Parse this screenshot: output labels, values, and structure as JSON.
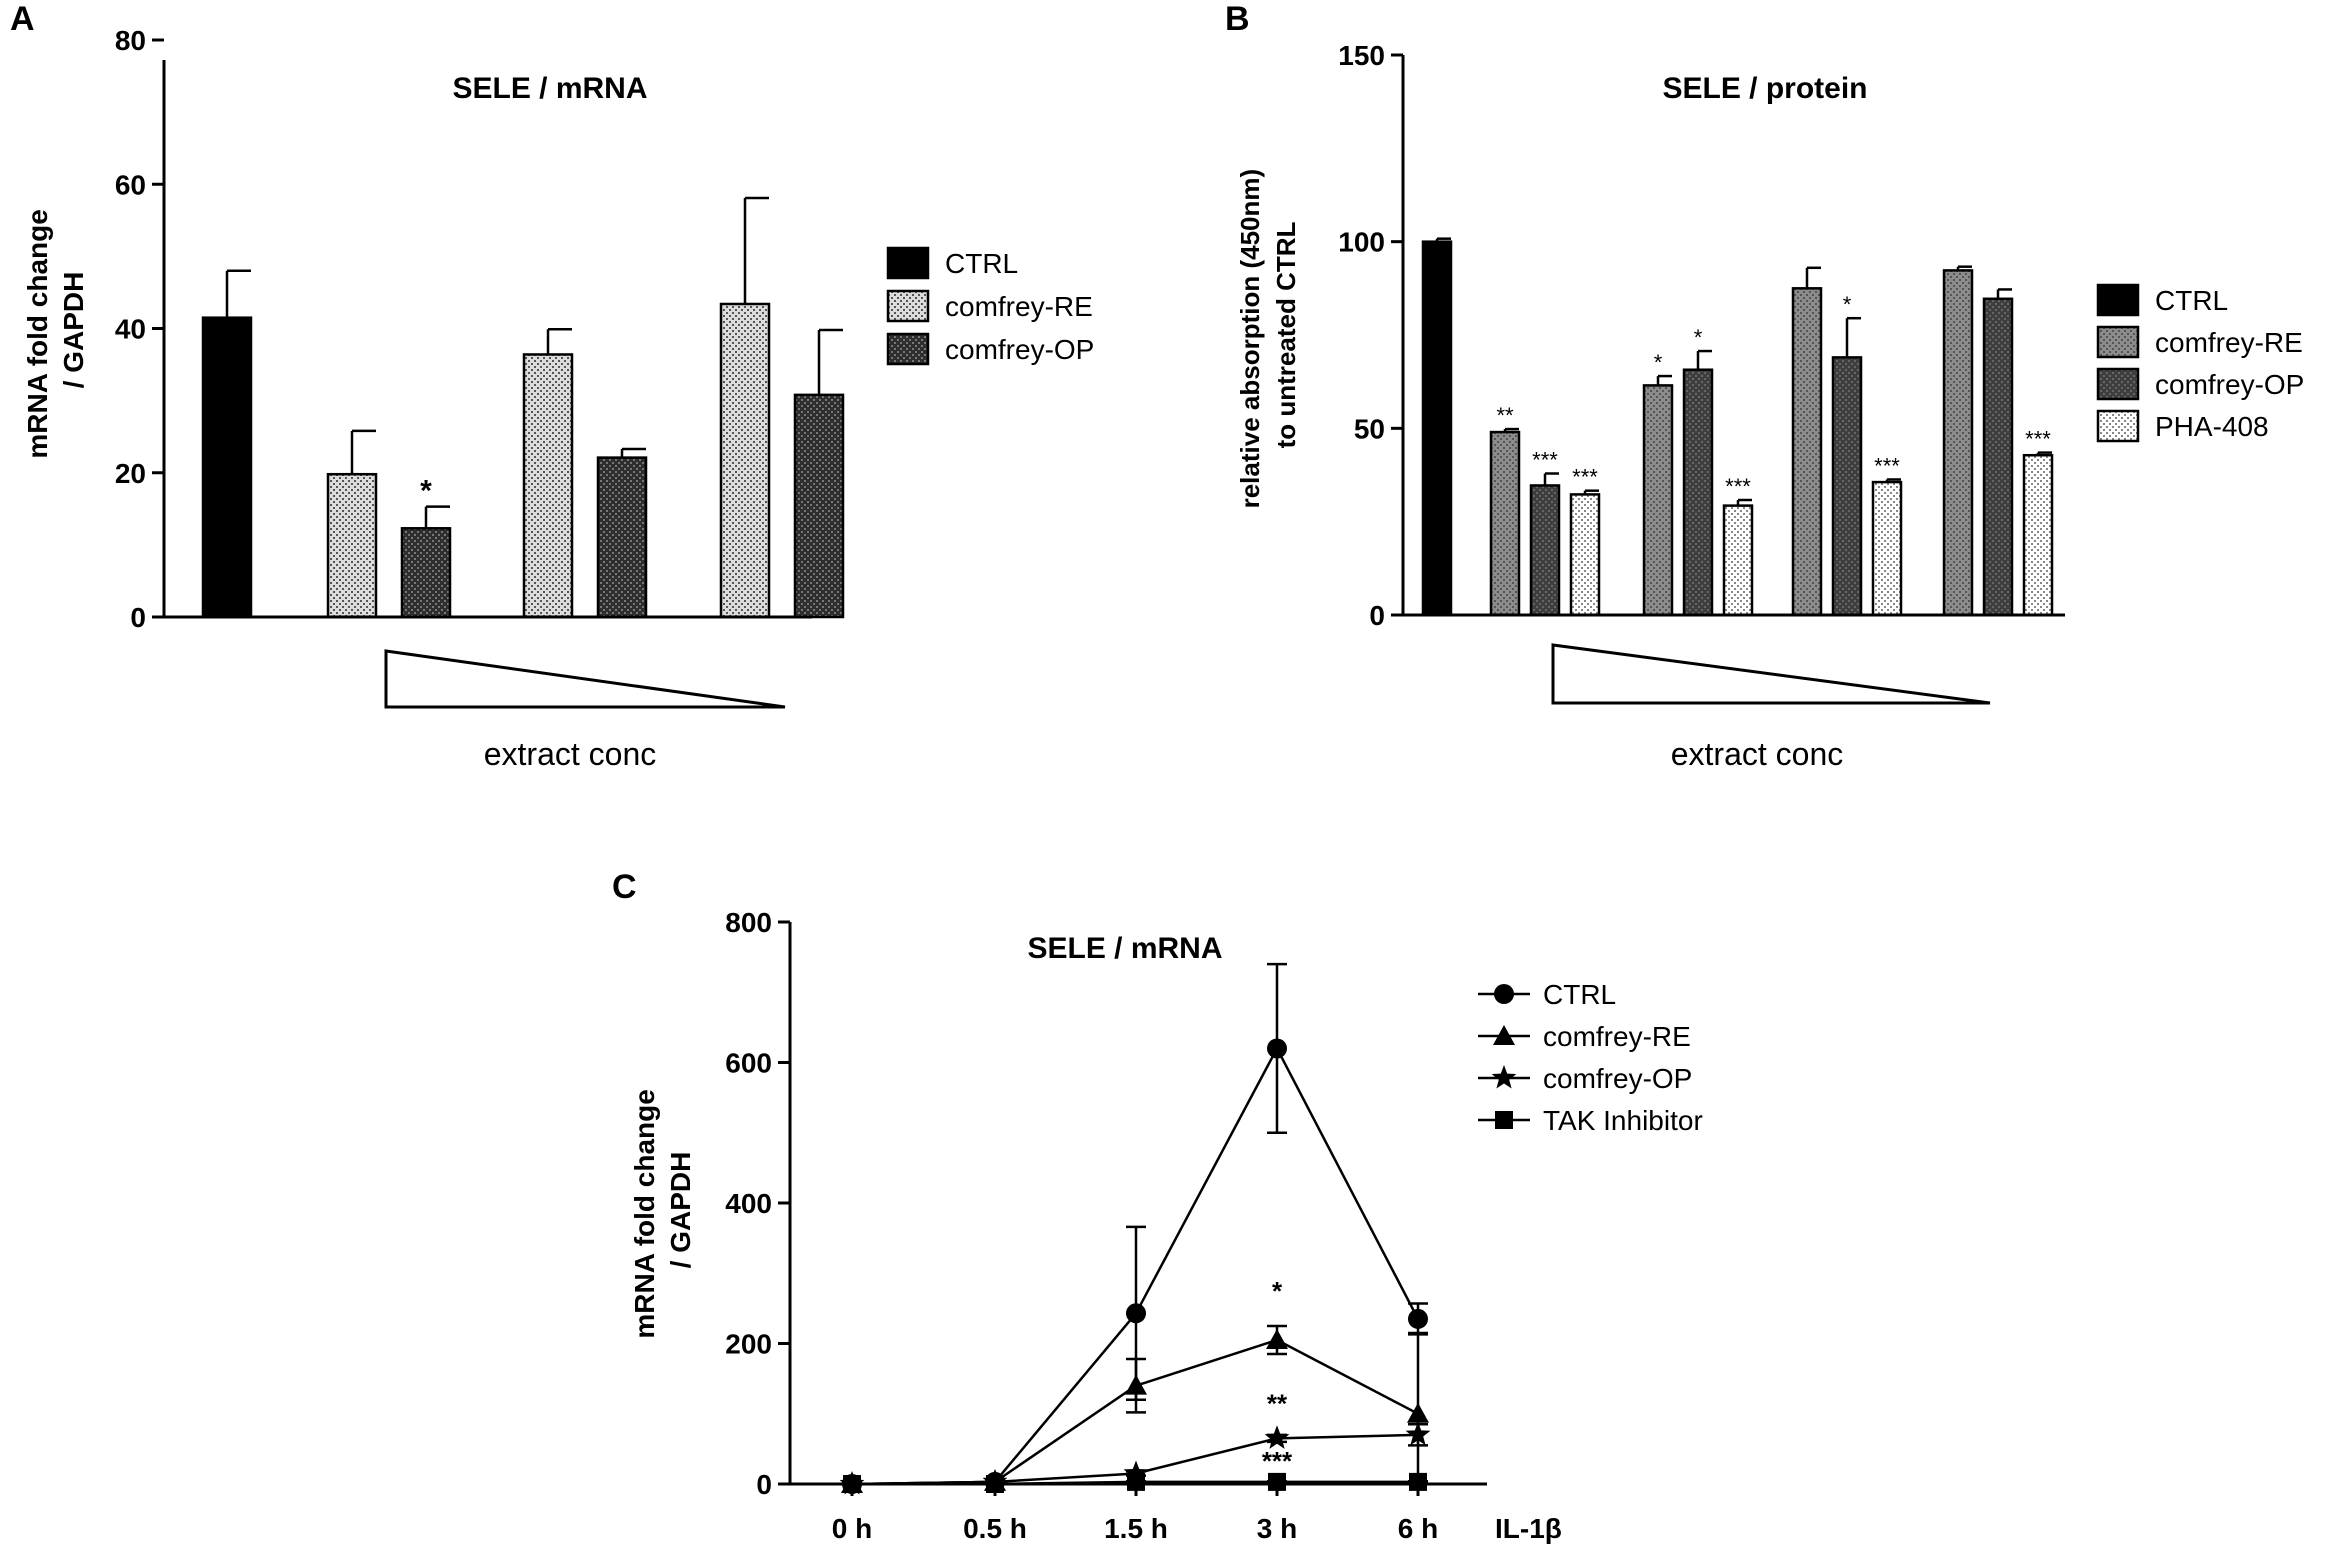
{
  "panel_labels": {
    "a": "A",
    "b": "B",
    "c": "C"
  },
  "chart_data": [
    {
      "panel": "A",
      "type": "bar",
      "title": "SELE / mRNA",
      "ylabel": "mRNA fold change\n/ GAPDH",
      "xlabel": "extract conc",
      "ylim": [
        0,
        80
      ],
      "yticks": [
        "0",
        "20",
        "40",
        "60",
        "80"
      ],
      "legend": [
        "CTRL",
        "comfrey-RE",
        "comfrey-OP"
      ],
      "bars": [
        {
          "series": "CTRL",
          "group": 0,
          "value": 41.5,
          "error": 6.5,
          "sig": ""
        },
        {
          "series": "comfrey-RE",
          "group": 1,
          "value": 19.8,
          "error": 6.0,
          "sig": ""
        },
        {
          "series": "comfrey-OP",
          "group": 1,
          "value": 12.3,
          "error": 3.0,
          "sig": "*"
        },
        {
          "series": "comfrey-RE",
          "group": 2,
          "value": 36.4,
          "error": 3.5,
          "sig": ""
        },
        {
          "series": "comfrey-OP",
          "group": 2,
          "value": 22.1,
          "error": 1.2,
          "sig": ""
        },
        {
          "series": "comfrey-RE",
          "group": 3,
          "value": 43.4,
          "error": 14.7,
          "sig": ""
        },
        {
          "series": "comfrey-OP",
          "group": 3,
          "value": 30.8,
          "error": 9.0,
          "sig": ""
        }
      ]
    },
    {
      "panel": "B",
      "type": "bar",
      "title": "SELE / protein",
      "ylabel": "relative absorption (450nm)\nto untreated CTRL",
      "xlabel": "extract conc",
      "ylim": [
        0,
        150
      ],
      "yticks": [
        "0",
        "50",
        "100",
        "150"
      ],
      "legend": [
        "CTRL",
        "comfrey-RE",
        "comfrey-OP",
        "PHA-408"
      ],
      "bars": [
        {
          "series": "CTRL",
          "group": 0,
          "value": 100,
          "error": 0.8,
          "sig": ""
        },
        {
          "series": "comfrey-RE",
          "group": 1,
          "value": 49,
          "error": 0.8,
          "sig": "**"
        },
        {
          "series": "comfrey-OP",
          "group": 1,
          "value": 34.7,
          "error": 3.2,
          "sig": "***"
        },
        {
          "series": "PHA-408",
          "group": 1,
          "value": 32.3,
          "error": 1.0,
          "sig": "***"
        },
        {
          "series": "comfrey-RE",
          "group": 2,
          "value": 61.5,
          "error": 2.5,
          "sig": "*"
        },
        {
          "series": "comfrey-OP",
          "group": 2,
          "value": 65.7,
          "error": 5.0,
          "sig": "*"
        },
        {
          "series": "PHA-408",
          "group": 2,
          "value": 29.3,
          "error": 1.5,
          "sig": "***"
        },
        {
          "series": "comfrey-RE",
          "group": 3,
          "value": 87.5,
          "error": 5.5,
          "sig": ""
        },
        {
          "series": "comfrey-OP",
          "group": 3,
          "value": 69,
          "error": 10.5,
          "sig": "*"
        },
        {
          "series": "PHA-408",
          "group": 3,
          "value": 35.6,
          "error": 0.7,
          "sig": "***"
        },
        {
          "series": "comfrey-RE",
          "group": 4,
          "value": 92.3,
          "error": 1.0,
          "sig": ""
        },
        {
          "series": "comfrey-OP",
          "group": 4,
          "value": 84.7,
          "error": 2.5,
          "sig": ""
        },
        {
          "series": "PHA-408",
          "group": 4,
          "value": 42.8,
          "error": 0.7,
          "sig": "***"
        }
      ]
    },
    {
      "panel": "C",
      "type": "line",
      "title": "SELE / mRNA",
      "ylabel": "mRNA fold change\n/ GAPDH",
      "xlabel": "IL-1β",
      "ylim": [
        0,
        800
      ],
      "yticks": [
        "0",
        "200",
        "400",
        "600",
        "800"
      ],
      "categories": [
        "0 h",
        "0.5 h",
        "1.5 h",
        "3 h",
        "6 h"
      ],
      "series": [
        {
          "name": "CTRL",
          "marker": "circle",
          "values": [
            0,
            3,
            243,
            620,
            235
          ],
          "errors": [
            0,
            0,
            123,
            120,
            22
          ]
        },
        {
          "name": "comfrey-RE",
          "marker": "triangle",
          "values": [
            0,
            3,
            140,
            205,
            100
          ],
          "errors": [
            0,
            0,
            38,
            20,
            115
          ]
        },
        {
          "name": "comfrey-OP",
          "marker": "star",
          "values": [
            0,
            3,
            15,
            65,
            70
          ],
          "errors": [
            0,
            0,
            3,
            5,
            15
          ]
        },
        {
          "name": "TAK Inhibitor",
          "marker": "square",
          "values": [
            0,
            0,
            3,
            3,
            3
          ],
          "errors": [
            0,
            0,
            1,
            1,
            1
          ]
        }
      ],
      "annotations": [
        {
          "category": "3 h",
          "value": 262,
          "text": "*"
        },
        {
          "category": "3 h",
          "value": 102,
          "text": "**"
        },
        {
          "category": "3 h",
          "value": 20,
          "text": "***"
        }
      ]
    }
  ]
}
